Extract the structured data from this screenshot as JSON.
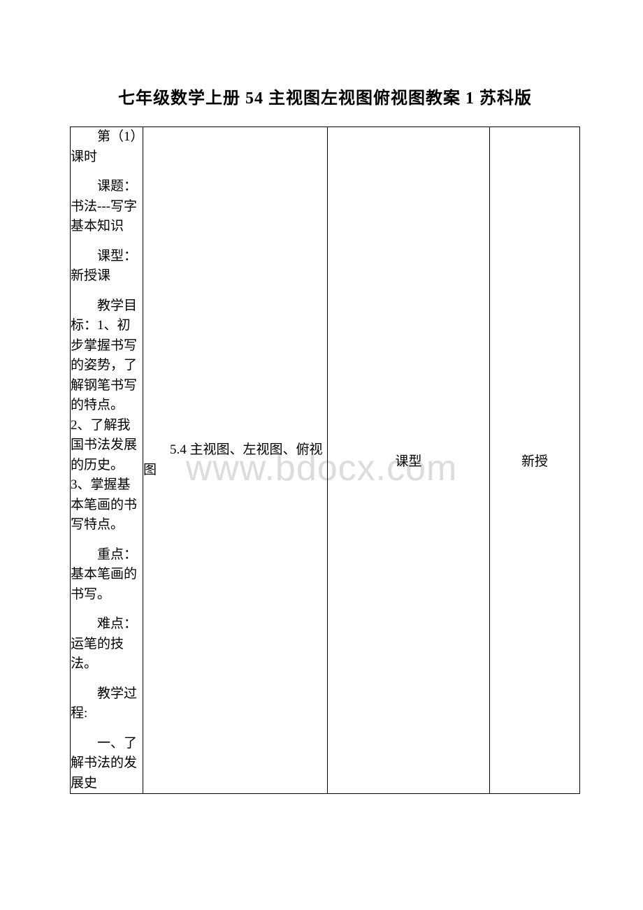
{
  "title": "七年级数学上册 54 主视图左视图俯视图教案 1 苏科版",
  "watermark": "www.bdocx.com",
  "leftColumn": {
    "p1": "第（1）课时",
    "p2": "课题：书法---写字基本知识",
    "p3": "课型：新授课",
    "p4": "教学目标：1、初步掌握书写的姿势，了解钢笔书写的特点。2、了解我国书法发展的历史。3、掌握基本笔画的书写特点。",
    "p5": "重点：基本笔画的书写。",
    "p6": "难点：运笔的技法。",
    "p7": "教学过程:",
    "p8": "一、了解书法的发展史"
  },
  "col2Text": "5.4 主视图、左视图、俯视图",
  "col3Label": "课型",
  "col4Label": "新授",
  "colors": {
    "background": "#ffffff",
    "text": "#000000",
    "border": "#000000",
    "watermark": "#dcdcdc"
  }
}
